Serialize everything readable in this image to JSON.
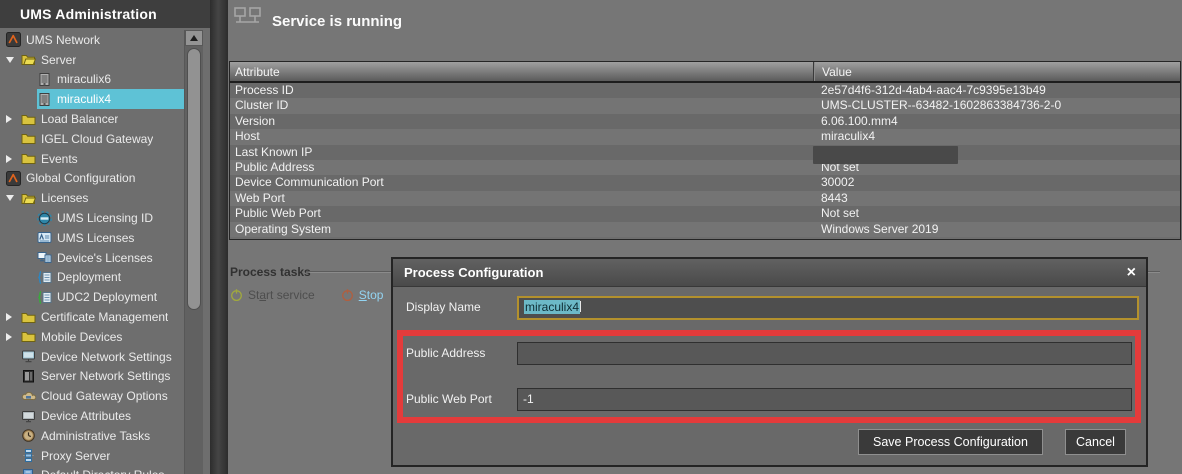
{
  "sidebar": {
    "title": "UMS Administration",
    "items": [
      {
        "label": "UMS Network",
        "level": 0,
        "icon": "igel-logo"
      },
      {
        "label": "Server",
        "level": 1,
        "icon": "folder-open",
        "arrow": "expanded"
      },
      {
        "label": "miraculix6",
        "level": 2,
        "icon": "server"
      },
      {
        "label": "miraculix4",
        "level": 2,
        "icon": "server",
        "selected": true
      },
      {
        "label": "Load Balancer",
        "level": 1,
        "icon": "folder",
        "arrow": "collapsed"
      },
      {
        "label": "IGEL Cloud Gateway",
        "level": 1,
        "icon": "folder"
      },
      {
        "label": "Events",
        "level": 1,
        "icon": "folder",
        "arrow": "collapsed"
      },
      {
        "label": "Global Configuration",
        "level": 0,
        "icon": "igel-logo"
      },
      {
        "label": "Licenses",
        "level": 1,
        "icon": "folder-open",
        "arrow": "expanded"
      },
      {
        "label": "UMS Licensing ID",
        "level": 2,
        "icon": "licensing-id"
      },
      {
        "label": "UMS Licenses",
        "level": 2,
        "icon": "ums-licenses"
      },
      {
        "label": "Device's Licenses",
        "level": 2,
        "icon": "device-licenses"
      },
      {
        "label": "Deployment",
        "level": 2,
        "icon": "deployment"
      },
      {
        "label": "UDC2 Deployment",
        "level": 2,
        "icon": "udc2-deployment"
      },
      {
        "label": "Certificate Management",
        "level": 1,
        "icon": "folder",
        "arrow": "collapsed"
      },
      {
        "label": "Mobile Devices",
        "level": 1,
        "icon": "folder",
        "arrow": "collapsed"
      },
      {
        "label": "Device Network Settings",
        "level": 1,
        "icon": "device-network"
      },
      {
        "label": "Server Network Settings",
        "level": 1,
        "icon": "server-network"
      },
      {
        "label": "Cloud Gateway Options",
        "level": 1,
        "icon": "cloud-gateway"
      },
      {
        "label": "Device Attributes",
        "level": 1,
        "icon": "device-attributes"
      },
      {
        "label": "Administrative Tasks",
        "level": 1,
        "icon": "admin-tasks"
      },
      {
        "label": "Proxy Server",
        "level": 1,
        "icon": "proxy-server"
      },
      {
        "label": "Default Directory Rules",
        "level": 1,
        "icon": "directory-rules"
      }
    ]
  },
  "main": {
    "status_title": "Service is running",
    "table": {
      "columns": [
        "Attribute",
        "Value"
      ],
      "rows": [
        {
          "attribute": "Process ID",
          "value": "2e57d4f6-312d-4ab4-aac4-7c9395e13b49"
        },
        {
          "attribute": "Cluster ID",
          "value": "UMS-CLUSTER--63482-1602863384736-2-0"
        },
        {
          "attribute": "Version",
          "value": "6.06.100.mm4"
        },
        {
          "attribute": "Host",
          "value": "miraculix4"
        },
        {
          "attribute": "Last Known IP",
          "value": "",
          "redacted": true
        },
        {
          "attribute": "Public Address",
          "value": "Not set"
        },
        {
          "attribute": "Device Communication Port",
          "value": "30002"
        },
        {
          "attribute": "Web Port",
          "value": "8443"
        },
        {
          "attribute": "Public Web Port",
          "value": "Not set"
        },
        {
          "attribute": "Operating System",
          "value": "Windows Server 2019"
        }
      ]
    },
    "process_tasks": {
      "title": "Process tasks",
      "actions": [
        {
          "label": "Start service",
          "mnemonic": "a",
          "enabled": false,
          "icon": "power-start"
        },
        {
          "label": "Stop",
          "mnemonic": "S",
          "enabled": true,
          "icon": "power-stop"
        }
      ]
    }
  },
  "dialog": {
    "title": "Process Configuration",
    "close_glyph": "×",
    "fields": [
      {
        "label": "Display Name",
        "value": "miraculix4",
        "state": "focused-selected"
      },
      {
        "label": "Public Address",
        "value": "",
        "state": "highlighted"
      },
      {
        "label": "Public Web Port",
        "value": "-1",
        "state": "highlighted"
      }
    ],
    "buttons": [
      {
        "label": "Save Process Configuration"
      },
      {
        "label": "Cancel"
      }
    ]
  },
  "colors": {
    "selection_cyan": "#5ec2d6",
    "annotation_red": "#e43b3b",
    "link_blue": "#93d4f2",
    "disabled_text": "#4e4e4e",
    "folder_yellow": "#d9c33e",
    "igel_orange": "#e0641e",
    "start_icon_green": "#a0a83e",
    "stop_icon_red": "#b05f3f"
  }
}
